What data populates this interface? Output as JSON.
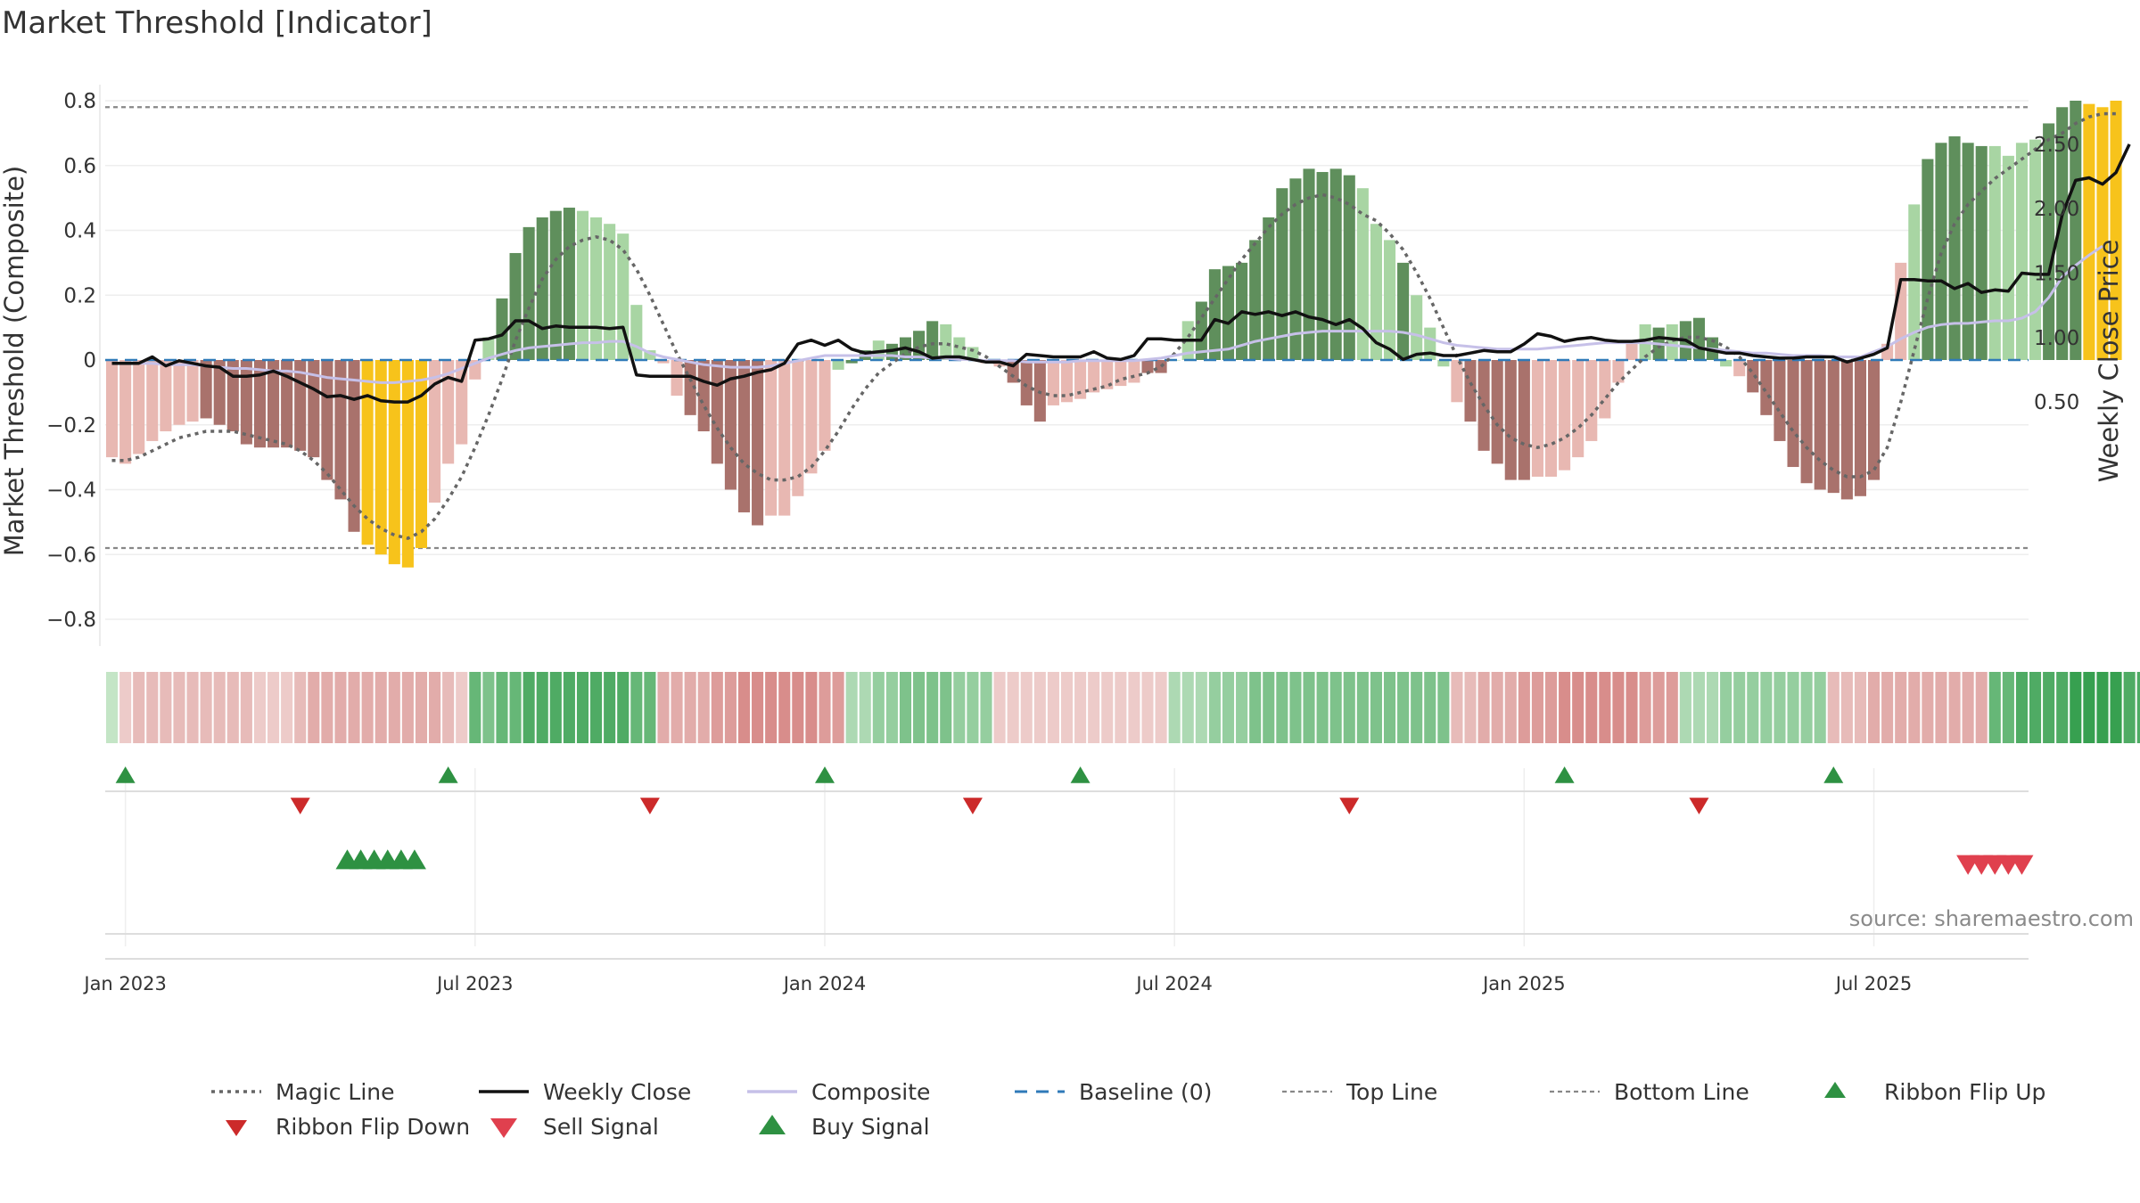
{
  "chart_data": {
    "type": "bar",
    "title": "Market Threshold [Indicator]",
    "ylabel": "Market Threshold (Composite)",
    "y2label": "Weekly Close Price",
    "ylim": [
      -0.88,
      0.86
    ],
    "y2lim": [
      0.26,
      2.58
    ],
    "yticks": [
      "0.8",
      "0.6",
      "0.4",
      "0.2",
      "0",
      "−0.2",
      "−0.4",
      "−0.6",
      "−0.8"
    ],
    "ytick_values": [
      0.8,
      0.6,
      0.4,
      0.2,
      0,
      -0.2,
      -0.4,
      -0.6,
      -0.8
    ],
    "y2ticks": [
      "2.50",
      "2.00",
      "1.50",
      "1.00",
      "0.50"
    ],
    "y2tick_values": [
      2.5,
      2.0,
      1.5,
      1.0,
      0.5
    ],
    "xticks": [
      "Jan 2023",
      "Jul 2023",
      "Jan 2024",
      "Jul 2024",
      "Jan 2025",
      "Jul 2025"
    ],
    "xtick_weeks": [
      1.5,
      27.5,
      53.5,
      79.5,
      105.5,
      131.5
    ],
    "week_count": 143,
    "top_line": 0.78,
    "bottom_line": -0.58,
    "grid": true,
    "source": "source: sharemaestro.com",
    "composite_bars": [
      -0.3,
      -0.32,
      -0.29,
      -0.25,
      -0.22,
      -0.2,
      -0.19,
      -0.18,
      -0.2,
      -0.22,
      -0.26,
      -0.27,
      -0.27,
      -0.27,
      -0.28,
      -0.3,
      -0.37,
      -0.43,
      -0.53,
      -0.57,
      -0.6,
      -0.63,
      -0.64,
      -0.58,
      -0.44,
      -0.32,
      -0.26,
      -0.06,
      0.07,
      0.19,
      0.33,
      0.41,
      0.44,
      0.46,
      0.47,
      0.46,
      0.44,
      0.42,
      0.39,
      0.17,
      0.03,
      -0.01,
      -0.11,
      -0.17,
      -0.22,
      -0.32,
      -0.4,
      -0.47,
      -0.51,
      -0.48,
      -0.48,
      -0.42,
      -0.35,
      -0.28,
      -0.03,
      -0.01,
      0.03,
      0.06,
      0.05,
      0.07,
      0.09,
      0.12,
      0.11,
      0.07,
      0.04,
      -0.01,
      -0.02,
      -0.07,
      -0.14,
      -0.19,
      -0.14,
      -0.13,
      -0.12,
      -0.1,
      -0.09,
      -0.08,
      -0.07,
      -0.04,
      -0.04,
      0.0,
      0.12,
      0.18,
      0.28,
      0.29,
      0.3,
      0.37,
      0.44,
      0.53,
      0.56,
      0.59,
      0.58,
      0.59,
      0.57,
      0.53,
      0.42,
      0.37,
      0.3,
      0.2,
      0.1,
      -0.02,
      -0.13,
      -0.19,
      -0.28,
      -0.32,
      -0.37,
      -0.37,
      -0.36,
      -0.36,
      -0.34,
      -0.3,
      -0.25,
      -0.18,
      -0.07,
      0.06,
      0.11,
      0.1,
      0.11,
      0.12,
      0.13,
      0.07,
      -0.02,
      -0.05,
      -0.1,
      -0.17,
      -0.25,
      -0.33,
      -0.38,
      -0.4,
      -0.41,
      -0.43,
      -0.42,
      -0.37,
      0.05,
      0.3,
      0.48,
      0.62,
      0.67,
      0.69,
      0.67,
      0.66,
      0.66,
      0.63,
      0.67,
      0.68,
      0.73,
      0.78,
      0.8,
      0.79,
      0.78,
      0.8
    ],
    "bar_color_category": [
      "loss-light",
      "loss-light",
      "loss-light",
      "loss-light",
      "loss-light",
      "loss-light",
      "loss-light",
      "loss-dark",
      "loss-dark",
      "loss-dark",
      "loss-dark",
      "loss-dark",
      "loss-dark",
      "loss-dark",
      "loss-dark",
      "loss-dark",
      "loss-dark",
      "loss-dark",
      "loss-dark",
      "extreme",
      "extreme",
      "extreme",
      "extreme",
      "extreme",
      "loss-light",
      "loss-light",
      "loss-light",
      "loss-light",
      "gain-light",
      "gain-dark",
      "gain-dark",
      "gain-dark",
      "gain-dark",
      "gain-dark",
      "gain-dark",
      "gain-light",
      "gain-light",
      "gain-light",
      "gain-light",
      "gain-light",
      "gain-light",
      "loss-light",
      "loss-light",
      "loss-dark",
      "loss-dark",
      "loss-dark",
      "loss-dark",
      "loss-dark",
      "loss-dark",
      "loss-light",
      "loss-light",
      "loss-light",
      "loss-light",
      "loss-light",
      "gain-light",
      "gain-dark",
      "gain-dark",
      "gain-light",
      "gain-dark",
      "gain-dark",
      "gain-dark",
      "gain-dark",
      "gain-light",
      "gain-light",
      "gain-light",
      "loss-light",
      "loss-light",
      "loss-dark",
      "loss-dark",
      "loss-dark",
      "loss-light",
      "loss-light",
      "loss-light",
      "loss-light",
      "loss-light",
      "loss-light",
      "loss-light",
      "loss-dark",
      "loss-dark",
      "gain-light",
      "gain-light",
      "gain-dark",
      "gain-dark",
      "gain-dark",
      "gain-dark",
      "gain-dark",
      "gain-dark",
      "gain-dark",
      "gain-dark",
      "gain-dark",
      "gain-dark",
      "gain-dark",
      "gain-dark",
      "gain-light",
      "gain-light",
      "gain-light",
      "gain-dark",
      "gain-light",
      "gain-light",
      "gain-light",
      "loss-light",
      "loss-dark",
      "loss-dark",
      "loss-dark",
      "loss-dark",
      "loss-dark",
      "loss-light",
      "loss-light",
      "loss-light",
      "loss-light",
      "loss-light",
      "loss-light",
      "loss-light",
      "loss-light",
      "gain-light",
      "gain-dark",
      "gain-light",
      "gain-dark",
      "gain-dark",
      "gain-dark",
      "gain-light",
      "loss-light",
      "loss-dark",
      "loss-dark",
      "loss-dark",
      "loss-dark",
      "loss-dark",
      "loss-dark",
      "loss-dark",
      "loss-dark",
      "loss-dark",
      "loss-dark",
      "loss-light",
      "loss-light",
      "gain-light",
      "gain-dark",
      "gain-dark",
      "gain-dark",
      "gain-dark",
      "gain-dark",
      "gain-light",
      "gain-light",
      "gain-light",
      "gain-light",
      "gain-dark",
      "gain-dark",
      "gain-dark",
      "extreme",
      "extreme",
      "extreme",
      "extreme",
      "extreme"
    ],
    "magic_line": [
      -0.31,
      -0.31,
      -0.3,
      -0.28,
      -0.26,
      -0.24,
      -0.23,
      -0.22,
      -0.22,
      -0.22,
      -0.23,
      -0.24,
      -0.25,
      -0.26,
      -0.28,
      -0.31,
      -0.35,
      -0.4,
      -0.45,
      -0.49,
      -0.52,
      -0.54,
      -0.55,
      -0.53,
      -0.49,
      -0.43,
      -0.36,
      -0.27,
      -0.17,
      -0.06,
      0.06,
      0.16,
      0.25,
      0.31,
      0.35,
      0.37,
      0.38,
      0.37,
      0.34,
      0.28,
      0.2,
      0.11,
      0.02,
      -0.06,
      -0.14,
      -0.21,
      -0.27,
      -0.32,
      -0.35,
      -0.37,
      -0.37,
      -0.36,
      -0.33,
      -0.28,
      -0.22,
      -0.15,
      -0.09,
      -0.04,
      -0.01,
      0.02,
      0.04,
      0.05,
      0.05,
      0.04,
      0.03,
      0.01,
      -0.02,
      -0.05,
      -0.08,
      -0.1,
      -0.11,
      -0.11,
      -0.1,
      -0.09,
      -0.08,
      -0.06,
      -0.05,
      -0.04,
      -0.02,
      0.02,
      0.07,
      0.13,
      0.19,
      0.25,
      0.31,
      0.36,
      0.41,
      0.45,
      0.48,
      0.5,
      0.51,
      0.5,
      0.48,
      0.45,
      0.43,
      0.39,
      0.34,
      0.27,
      0.19,
      0.1,
      0.01,
      -0.07,
      -0.14,
      -0.2,
      -0.24,
      -0.26,
      -0.27,
      -0.26,
      -0.24,
      -0.21,
      -0.17,
      -0.12,
      -0.07,
      -0.03,
      0.01,
      0.04,
      0.06,
      0.07,
      0.07,
      0.06,
      0.04,
      0.01,
      -0.04,
      -0.1,
      -0.16,
      -0.22,
      -0.27,
      -0.31,
      -0.34,
      -0.36,
      -0.36,
      -0.34,
      -0.27,
      -0.13,
      0.03,
      0.19,
      0.33,
      0.42,
      0.48,
      0.52,
      0.56,
      0.59,
      0.62,
      0.65,
      0.68,
      0.7,
      0.73,
      0.75,
      0.76,
      0.76
    ],
    "weekly_close": [
      0.8,
      0.8,
      0.8,
      0.85,
      0.78,
      0.82,
      0.8,
      0.78,
      0.77,
      0.7,
      0.7,
      0.71,
      0.74,
      0.7,
      0.65,
      0.6,
      0.54,
      0.55,
      0.52,
      0.55,
      0.51,
      0.5,
      0.5,
      0.55,
      0.64,
      0.69,
      0.66,
      0.98,
      0.99,
      1.02,
      1.13,
      1.13,
      1.07,
      1.09,
      1.08,
      1.08,
      1.08,
      1.07,
      1.08,
      0.71,
      0.7,
      0.7,
      0.7,
      0.7,
      0.66,
      0.63,
      0.68,
      0.7,
      0.73,
      0.75,
      0.8,
      0.95,
      0.98,
      0.94,
      0.98,
      0.91,
      0.88,
      0.89,
      0.9,
      0.92,
      0.89,
      0.84,
      0.85,
      0.85,
      0.83,
      0.81,
      0.81,
      0.78,
      0.87,
      0.86,
      0.85,
      0.85,
      0.85,
      0.89,
      0.84,
      0.83,
      0.86,
      0.99,
      0.99,
      0.98,
      0.98,
      0.98,
      1.14,
      1.11,
      1.2,
      1.18,
      1.2,
      1.17,
      1.2,
      1.16,
      1.14,
      1.1,
      1.14,
      1.07,
      0.96,
      0.91,
      0.83,
      0.87,
      0.88,
      0.86,
      0.86,
      0.88,
      0.9,
      0.89,
      0.89,
      0.95,
      1.03,
      1.01,
      0.97,
      0.99,
      1.0,
      0.98,
      0.97,
      0.97,
      0.98,
      1.0,
      0.99,
      0.98,
      0.92,
      0.9,
      0.88,
      0.88,
      0.86,
      0.85,
      0.84,
      0.84,
      0.85,
      0.85,
      0.85,
      0.81,
      0.84,
      0.87,
      0.92,
      1.45,
      1.45,
      1.44,
      1.44,
      1.38,
      1.42,
      1.35,
      1.37,
      1.36,
      1.5,
      1.49,
      1.49,
      1.95,
      2.22,
      2.24,
      2.19,
      2.28,
      2.5
    ],
    "composite_line": [
      0.8,
      0.8,
      0.8,
      0.8,
      0.79,
      0.79,
      0.79,
      0.78,
      0.77,
      0.76,
      0.76,
      0.75,
      0.74,
      0.74,
      0.73,
      0.71,
      0.69,
      0.68,
      0.67,
      0.66,
      0.65,
      0.65,
      0.66,
      0.67,
      0.69,
      0.72,
      0.76,
      0.8,
      0.84,
      0.87,
      0.9,
      0.92,
      0.93,
      0.94,
      0.95,
      0.96,
      0.96,
      0.97,
      0.97,
      0.93,
      0.88,
      0.85,
      0.83,
      0.81,
      0.79,
      0.78,
      0.77,
      0.77,
      0.77,
      0.78,
      0.8,
      0.82,
      0.84,
      0.86,
      0.86,
      0.86,
      0.86,
      0.86,
      0.86,
      0.85,
      0.85,
      0.84,
      0.84,
      0.83,
      0.83,
      0.82,
      0.82,
      0.82,
      0.81,
      0.81,
      0.81,
      0.81,
      0.82,
      0.82,
      0.82,
      0.82,
      0.82,
      0.83,
      0.84,
      0.86,
      0.88,
      0.89,
      0.9,
      0.91,
      0.94,
      0.97,
      0.99,
      1.01,
      1.03,
      1.04,
      1.05,
      1.05,
      1.05,
      1.05,
      1.05,
      1.05,
      1.04,
      1.02,
      0.99,
      0.96,
      0.94,
      0.93,
      0.92,
      0.91,
      0.91,
      0.91,
      0.91,
      0.92,
      0.93,
      0.94,
      0.95,
      0.96,
      0.96,
      0.96,
      0.96,
      0.95,
      0.94,
      0.93,
      0.92,
      0.91,
      0.9,
      0.89,
      0.88,
      0.88,
      0.87,
      0.86,
      0.86,
      0.86,
      0.85,
      0.85,
      0.85,
      0.89,
      0.93,
      0.99,
      1.04,
      1.08,
      1.1,
      1.11,
      1.11,
      1.12,
      1.13,
      1.13,
      1.15,
      1.2,
      1.31,
      1.47,
      1.56,
      1.64,
      1.71
    ],
    "ribbon": [
      1,
      -1,
      -2,
      -2,
      -2,
      -2,
      -2,
      -2,
      -2,
      -2,
      -2,
      -1,
      -1,
      -1,
      -2,
      -3,
      -3,
      -3,
      -3,
      -3,
      -3,
      -3,
      -3,
      -3,
      -3,
      -2,
      -1,
      5,
      4,
      5,
      5,
      6,
      6,
      6,
      6,
      6,
      6,
      6,
      6,
      5,
      5,
      -3,
      -3,
      -3,
      -3,
      -4,
      -4,
      -5,
      -5,
      -5,
      -5,
      -5,
      -5,
      -4,
      -4,
      2,
      2,
      3,
      3,
      4,
      4,
      4,
      4,
      3,
      3,
      3,
      -1,
      -1,
      -1,
      -1,
      -1,
      -1,
      -1,
      -1,
      -1,
      -1,
      -1,
      -1,
      -1,
      2,
      2,
      2,
      3,
      3,
      3,
      4,
      4,
      4,
      4,
      4,
      4,
      4,
      4,
      4,
      4,
      4,
      4,
      4,
      4,
      4,
      -2,
      -2,
      -3,
      -3,
      -3,
      -4,
      -4,
      -4,
      -5,
      -5,
      -5,
      -5,
      -5,
      -5,
      -4,
      -4,
      -4,
      2,
      2,
      2,
      3,
      3,
      3,
      3,
      3,
      3,
      3,
      3,
      -2,
      -2,
      -2,
      -3,
      -3,
      -3,
      -3,
      -3,
      -3,
      -3,
      -3,
      -3,
      5,
      5,
      6,
      6,
      6,
      6,
      7,
      7,
      7,
      7,
      6,
      6,
      6,
      5,
      5,
      5,
      4
    ],
    "ribbon_flip_up": [
      1,
      25,
      53,
      72,
      108,
      128
    ],
    "ribbon_flip_down": [
      14,
      40,
      64,
      92,
      118
    ],
    "buy_signals": [
      17.5,
      18.5,
      19.5,
      20.5,
      21.5,
      22.5
    ],
    "sell_signals": [
      138,
      139,
      140,
      141,
      142
    ],
    "legend": [
      "Magic Line",
      "Weekly Close",
      "Composite",
      "Baseline (0)",
      "Top Line",
      "Bottom Line",
      "Ribbon Flip Up",
      "Ribbon Flip Down",
      "Sell Signal",
      "Buy Signal"
    ],
    "colors": {
      "gain_dark": "#5f8f5c",
      "gain_light": "#a8d5a3",
      "loss_dark": "#a9726c",
      "loss_light": "#e8b8b2",
      "extreme": "#f7c31b",
      "weekly_close": "#111111",
      "composite_line": "#c6c0e8",
      "magic_line": "#666666",
      "baseline": "#2f7ab8",
      "flip_up": "#2e9142",
      "flip_down": "#cc2a2a",
      "sell": "#e0404e",
      "buy": "#2e9142"
    }
  }
}
